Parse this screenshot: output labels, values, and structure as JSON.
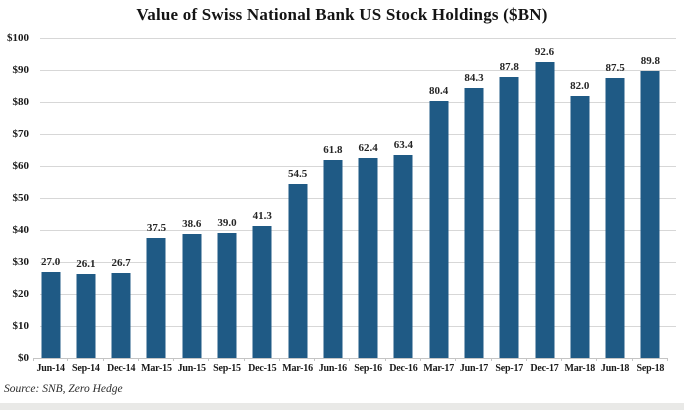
{
  "colors": {
    "background": "#FFFFFF",
    "bar": "#1F5A85",
    "grid": "#D7D7D7",
    "axis": "#C4C4C4",
    "title_text": "#141414",
    "tick_text": "#1A1A1A",
    "value_text": "#262626",
    "bottom_edge": "#E9E9E7"
  },
  "chart_data": {
    "type": "bar",
    "title": "Value of Swiss National Bank US Stock Holdings ($BN)",
    "source": "Source: SNB, Zero Hedge",
    "categories": [
      "Jun-14",
      "Sep-14",
      "Dec-14",
      "Mar-15",
      "Jun-15",
      "Sep-15",
      "Dec-15",
      "Mar-16",
      "Jun-16",
      "Sep-16",
      "Dec-16",
      "Mar-17",
      "Jun-17",
      "Sep-17",
      "Dec-17",
      "Mar-18",
      "Jun-18",
      "Sep-18"
    ],
    "values": [
      27.0,
      26.1,
      26.7,
      37.5,
      38.6,
      39.0,
      41.3,
      54.5,
      61.8,
      62.4,
      63.4,
      80.4,
      84.3,
      87.8,
      92.6,
      82.0,
      87.5,
      89.8
    ],
    "value_labels": [
      "27.0",
      "26.1",
      "26.7",
      "37.5",
      "38.6",
      "39.0",
      "41.3",
      "54.5",
      "61.8",
      "62.4",
      "63.4",
      "80.4",
      "84.3",
      "87.8",
      "92.6",
      "82.0",
      "87.5",
      "89.8"
    ],
    "xlabel": "",
    "ylabel": "",
    "ylim": [
      0,
      100
    ],
    "ytick_step": 10,
    "ytick_labels": [
      "$0",
      "$10",
      "$20",
      "$30",
      "$40",
      "$50",
      "$60",
      "$70",
      "$80",
      "$90",
      "$100"
    ],
    "grid": true,
    "legend": false
  }
}
